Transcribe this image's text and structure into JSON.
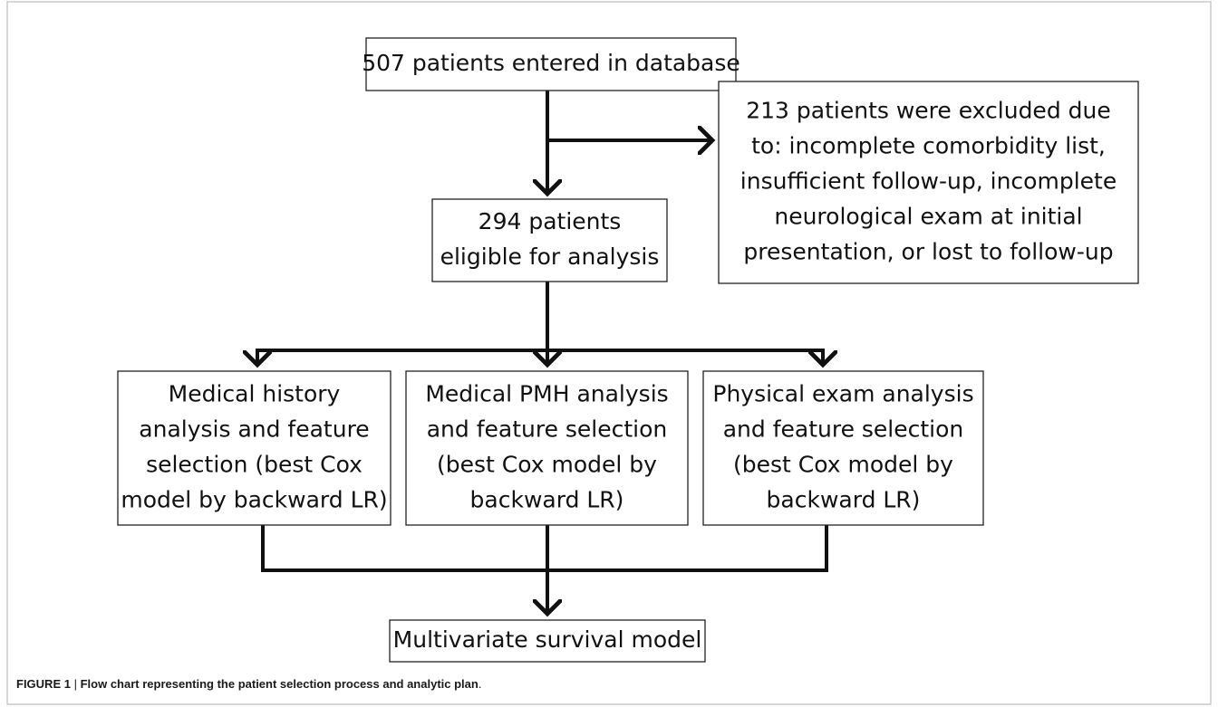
{
  "nodes": [
    {
      "lines": [
        "507 patients entered in database"
      ]
    },
    {
      "lines": [
        "213 patients were excluded due",
        "to: incomplete comorbidity list,",
        "insufficient follow-up, incomplete",
        "neurological exam at initial",
        "presentation, or lost to follow-up"
      ]
    },
    {
      "lines": [
        "294 patients",
        "eligible for analysis"
      ]
    },
    {
      "lines": [
        "Medical history",
        "analysis and feature",
        "selection (best Cox",
        "model by backward LR)"
      ]
    },
    {
      "lines": [
        "Medical PMH analysis",
        "and feature selection",
        "(best Cox model by",
        "backward LR)"
      ]
    },
    {
      "lines": [
        "Physical exam analysis",
        "and feature selection",
        "(best Cox model by",
        "backward LR)"
      ]
    },
    {
      "lines": [
        "Multivariate survival model"
      ]
    }
  ],
  "caption": {
    "label": "FIGURE 1",
    "separator": "|",
    "text": "Flow chart representing the patient selection process and analytic plan",
    "end": "."
  }
}
